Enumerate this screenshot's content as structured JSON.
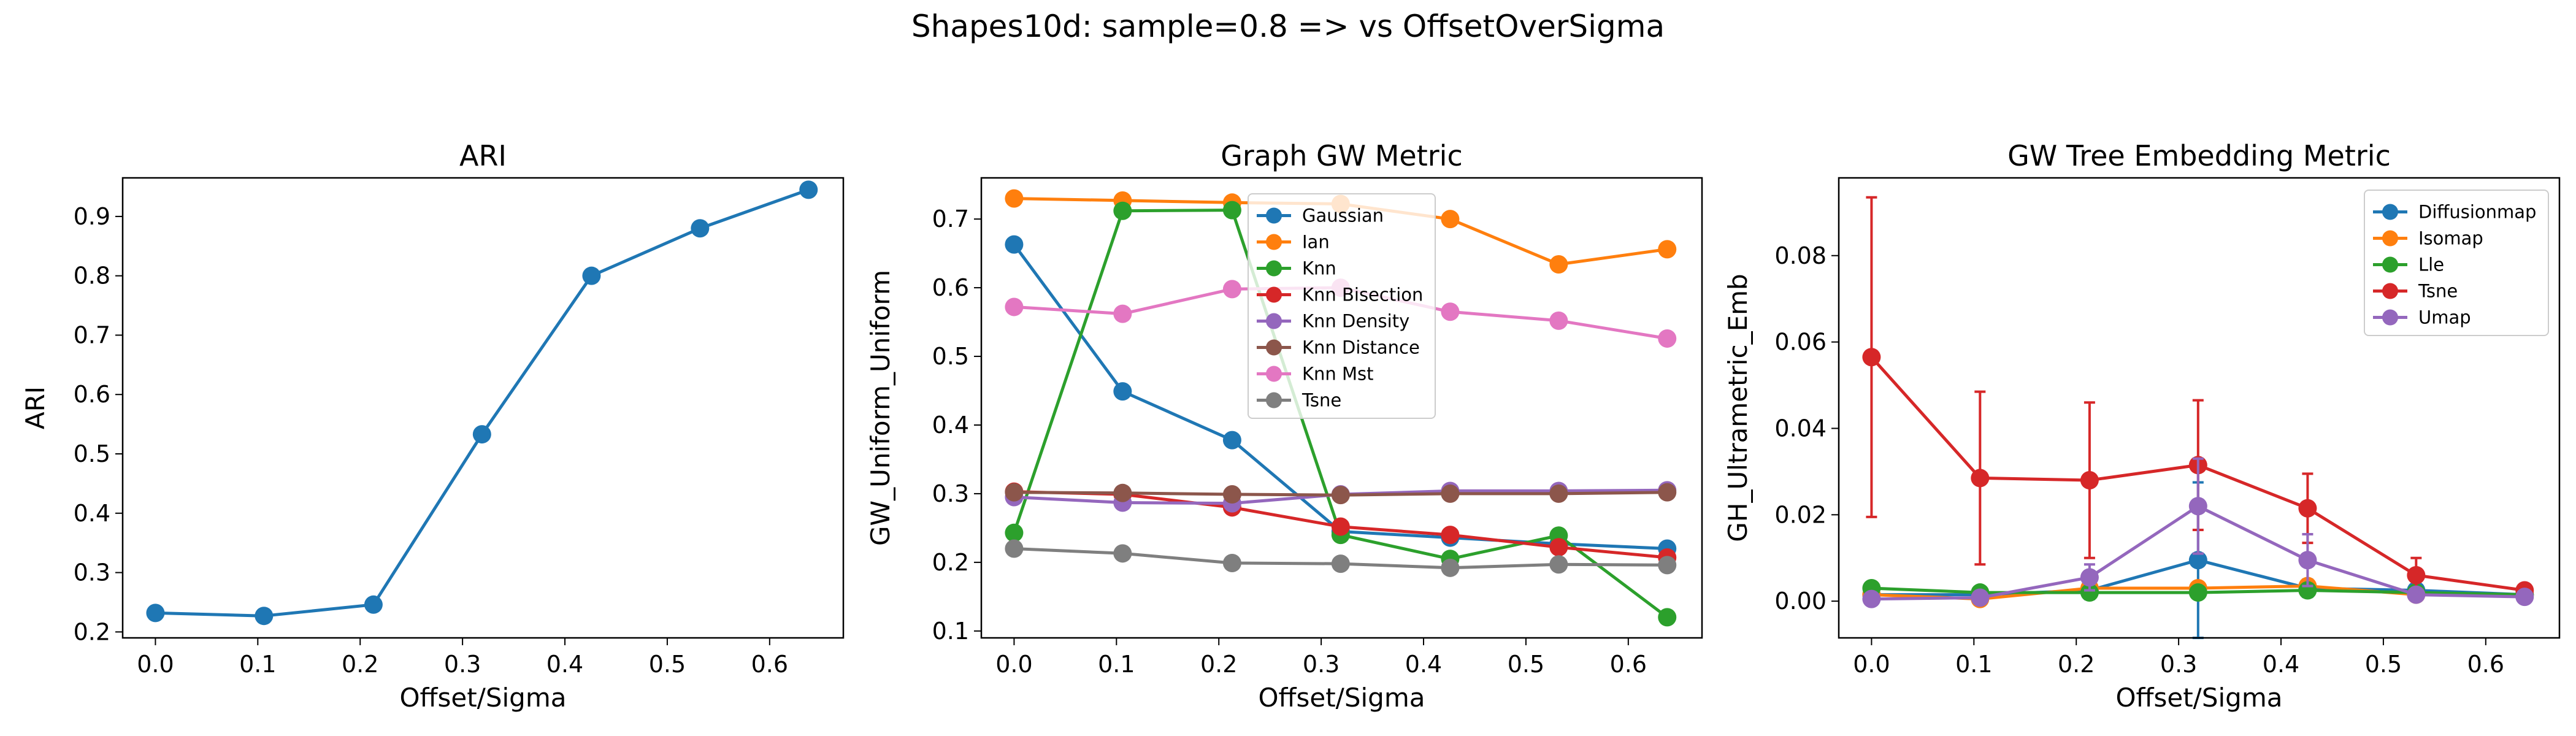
{
  "figure": {
    "suptitle": "Shapes10d: sample=0.8 => vs OffsetOverSigma"
  },
  "chart_data": [
    {
      "type": "line",
      "title": "ARI",
      "xlabel": "Offset/Sigma",
      "ylabel": "ARI",
      "xlim": [
        -0.032,
        0.672
      ],
      "ylim": [
        0.19,
        0.965
      ],
      "xticks": [
        0.0,
        0.1,
        0.2,
        0.3,
        0.4,
        0.5,
        0.6
      ],
      "xtick_labels": [
        "0.0",
        "0.1",
        "0.2",
        "0.3",
        "0.4",
        "0.5",
        "0.6"
      ],
      "yticks": [
        0.2,
        0.3,
        0.4,
        0.5,
        0.6,
        0.7,
        0.8,
        0.9
      ],
      "ytick_labels": [
        "0.2",
        "0.3",
        "0.4",
        "0.5",
        "0.6",
        "0.7",
        "0.8",
        "0.9"
      ],
      "x": [
        0.0,
        0.106,
        0.213,
        0.319,
        0.426,
        0.532,
        0.638
      ],
      "series": [
        {
          "name": "",
          "color": "#1f77b4",
          "values": [
            0.232,
            0.227,
            0.246,
            0.533,
            0.8,
            0.88,
            0.945
          ]
        }
      ],
      "legend": null
    },
    {
      "type": "line",
      "title": "Graph GW Metric",
      "xlabel": "Offset/Sigma",
      "ylabel": "GW_Uniform_Uniform",
      "xlim": [
        -0.032,
        0.672
      ],
      "ylim": [
        0.09,
        0.76
      ],
      "xticks": [
        0.0,
        0.1,
        0.2,
        0.3,
        0.4,
        0.5,
        0.6
      ],
      "xtick_labels": [
        "0.0",
        "0.1",
        "0.2",
        "0.3",
        "0.4",
        "0.5",
        "0.6"
      ],
      "yticks": [
        0.1,
        0.2,
        0.3,
        0.4,
        0.5,
        0.6,
        0.7
      ],
      "ytick_labels": [
        "0.1",
        "0.2",
        "0.3",
        "0.4",
        "0.5",
        "0.6",
        "0.7"
      ],
      "x": [
        0.0,
        0.106,
        0.213,
        0.319,
        0.426,
        0.532,
        0.638
      ],
      "series": [
        {
          "name": "Gaussian",
          "color": "#1f77b4",
          "values": [
            0.663,
            0.449,
            0.378,
            0.245,
            0.236,
            0.227,
            0.22
          ]
        },
        {
          "name": "Ian",
          "color": "#ff7f0e",
          "values": [
            0.73,
            0.727,
            0.724,
            0.722,
            0.7,
            0.634,
            0.656
          ]
        },
        {
          "name": "Knn",
          "color": "#2ca02c",
          "values": [
            0.243,
            0.712,
            0.713,
            0.24,
            0.205,
            0.239,
            0.12
          ]
        },
        {
          "name": "Knn Bisection",
          "color": "#d62728",
          "values": [
            0.303,
            0.299,
            0.28,
            0.252,
            0.24,
            0.222,
            0.207
          ]
        },
        {
          "name": "Knn Density",
          "color": "#9467bd",
          "values": [
            0.295,
            0.287,
            0.286,
            0.299,
            0.304,
            0.304,
            0.305
          ]
        },
        {
          "name": "Knn Distance",
          "color": "#8c564b",
          "values": [
            0.302,
            0.301,
            0.299,
            0.298,
            0.3,
            0.3,
            0.302
          ]
        },
        {
          "name": "Knn Mst",
          "color": "#e377c2",
          "values": [
            0.572,
            0.562,
            0.598,
            0.6,
            0.565,
            0.552,
            0.526
          ]
        },
        {
          "name": "Tsne",
          "color": "#7f7f7f",
          "values": [
            0.22,
            0.213,
            0.199,
            0.198,
            0.192,
            0.197,
            0.196
          ]
        }
      ],
      "legend": "upper-center"
    },
    {
      "type": "line",
      "title": "GW Tree Embedding Metric",
      "xlabel": "Offset/Sigma",
      "ylabel": "GH_Ultrametric_Emb",
      "xlim": [
        -0.032,
        0.672
      ],
      "ylim": [
        -0.0085,
        0.098
      ],
      "xticks": [
        0.0,
        0.1,
        0.2,
        0.3,
        0.4,
        0.5,
        0.6
      ],
      "xtick_labels": [
        "0.0",
        "0.1",
        "0.2",
        "0.3",
        "0.4",
        "0.5",
        "0.6"
      ],
      "yticks": [
        0.0,
        0.02,
        0.04,
        0.06,
        0.08
      ],
      "ytick_labels": [
        "0.00",
        "0.02",
        "0.04",
        "0.06",
        "0.08"
      ],
      "x": [
        0.0,
        0.106,
        0.213,
        0.319,
        0.426,
        0.532,
        0.638
      ],
      "series": [
        {
          "name": "Diffusionmap",
          "color": "#1f77b4",
          "values": [
            0.0015,
            0.0015,
            0.0025,
            0.0095,
            0.003,
            0.0025,
            0.0015
          ],
          "errors": [
            0.001,
            0.001,
            0.002,
            0.018,
            0.002,
            0.001,
            0.001
          ]
        },
        {
          "name": "Isomap",
          "color": "#ff7f0e",
          "values": [
            0.0015,
            0.0005,
            0.003,
            0.003,
            0.0035,
            0.0015,
            0.0015
          ],
          "errors": [
            0.001,
            0.001,
            0.001,
            0.001,
            0.001,
            0.001,
            0.001
          ]
        },
        {
          "name": "Lle",
          "color": "#2ca02c",
          "values": [
            0.003,
            0.002,
            0.002,
            0.002,
            0.0025,
            0.002,
            0.0015
          ],
          "errors": [
            0.001,
            0.001,
            0.001,
            0.001,
            0.001,
            0.001,
            0.001
          ]
        },
        {
          "name": "Tsne",
          "color": "#d62728",
          "values": [
            0.0565,
            0.0285,
            0.028,
            0.0315,
            0.0215,
            0.006,
            0.0025
          ],
          "errors": [
            0.037,
            0.02,
            0.018,
            0.015,
            0.008,
            0.004,
            0.001
          ]
        },
        {
          "name": "Umap",
          "color": "#9467bd",
          "values": [
            0.0005,
            0.0008,
            0.0055,
            0.022,
            0.0095,
            0.0015,
            0.001
          ],
          "errors": [
            0.001,
            0.001,
            0.003,
            0.011,
            0.006,
            0.001,
            0.001
          ]
        }
      ],
      "legend": "upper-right"
    }
  ]
}
